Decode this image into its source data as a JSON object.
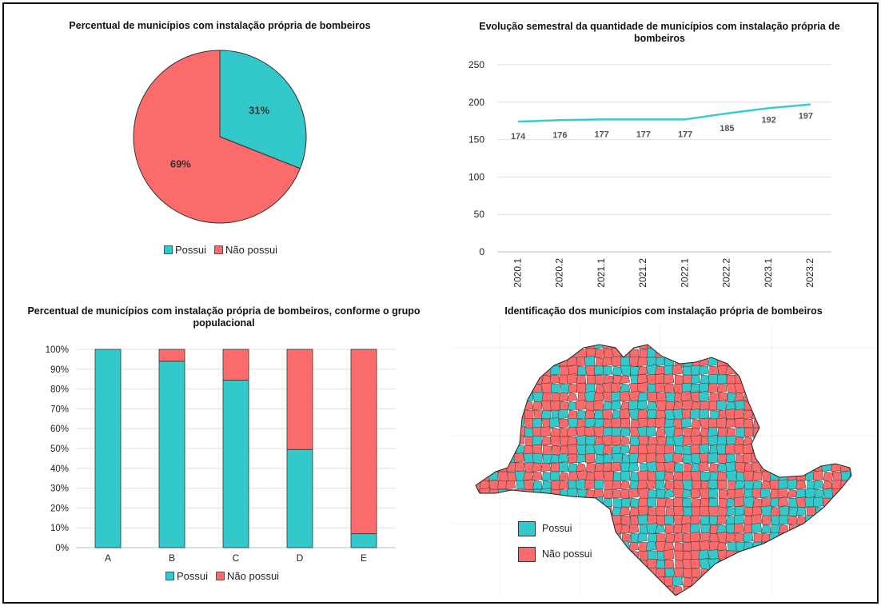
{
  "colors": {
    "possui": "#33c8c9",
    "nao_possui": "#fb6b6b",
    "grid": "#dddddd",
    "line": "#3ccbca"
  },
  "legend": {
    "possui": "Possui",
    "nao_possui": "Não possui"
  },
  "pie": {
    "title": "Percentual de municípios com instalação própria de bombeiros",
    "chart_data": {
      "type": "pie",
      "labels": [
        "Possui",
        "Não possui"
      ],
      "values": [
        31,
        69
      ],
      "value_labels": [
        "31%",
        "69%"
      ]
    }
  },
  "line": {
    "title": "Evolução semestral da quantidade de municípios com instalação própria de bombeiros",
    "chart_data": {
      "type": "line",
      "x": [
        "2020.1",
        "2020.2",
        "2021.1",
        "2021.2",
        "2022.1",
        "2022.2",
        "2023.1",
        "2023.2"
      ],
      "values": [
        174,
        176,
        177,
        177,
        177,
        185,
        192,
        197
      ],
      "ylim": [
        0,
        250
      ],
      "yticks": [
        0,
        50,
        100,
        150,
        200,
        250
      ],
      "grid": true
    }
  },
  "stacked": {
    "title": "Percentual de municípios com instalação própria de bombeiros, conforme o grupo populacional",
    "chart_data": {
      "type": "bar",
      "stacked": true,
      "categories": [
        "A",
        "B",
        "C",
        "D",
        "E"
      ],
      "series": [
        {
          "name": "Possui",
          "values": [
            100,
            94,
            84.5,
            49.5,
            7
          ]
        },
        {
          "name": "Não possui",
          "values": [
            0,
            6,
            15.5,
            50.5,
            93
          ]
        }
      ],
      "ylim": [
        0,
        100
      ],
      "yticks": [
        "0%",
        "10%",
        "20%",
        "30%",
        "40%",
        "50%",
        "60%",
        "70%",
        "80%",
        "90%",
        "100%"
      ],
      "grid": true
    }
  },
  "map": {
    "title": "Identificação dos municípios com instalação própria de bombeiros"
  }
}
